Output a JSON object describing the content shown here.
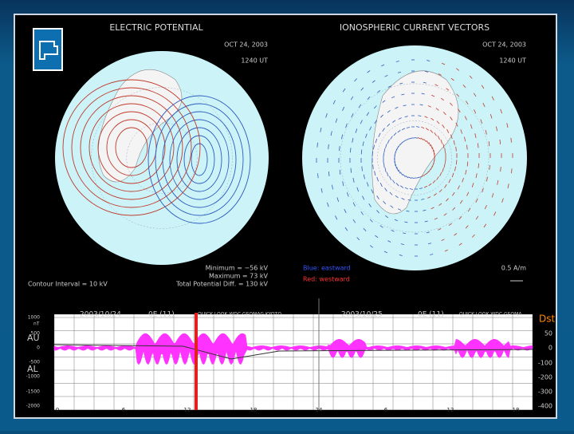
{
  "left_panel": {
    "title": "ELECTRIC POTENTIAL",
    "date": "OCT 24, 2003",
    "time": "1240 UT",
    "minimum": "Minimum = −56 kV",
    "maximum": "Maximum = 73 kV",
    "total": "Total Potential Diff. = 130 kV",
    "interval": "Contour Interval = 10 kV"
  },
  "right_panel": {
    "title": "IONOSPHERIC CURRENT VECTORS",
    "date": "OCT 24, 2003",
    "time": "1240 UT",
    "blue": "Blue: eastward",
    "red": "Red: westward",
    "scale": "0.5 A/m"
  },
  "bottom_panel": {
    "header_1": [
      "2003/10/24",
      "0E (11)",
      "QUICK LOOK WDC GEOMAG KYOTO"
    ],
    "header_2": [
      "2003/10/25",
      "0E (11)",
      "QUICK LOOK WDC GEOMA"
    ],
    "dst": "Dst",
    "left_ticks": [
      "1000",
      "500",
      "0",
      "-500",
      "-1000",
      "-1500",
      "-2000"
    ],
    "left_unit": "nT",
    "au": "AU",
    "al": "AL",
    "right_ticks": [
      "50",
      "0",
      "-100",
      "-200",
      "-300",
      "-400"
    ],
    "x_ticks": [
      "0",
      "6",
      "12",
      "18",
      "24",
      "6",
      "12",
      "18"
    ]
  }
}
